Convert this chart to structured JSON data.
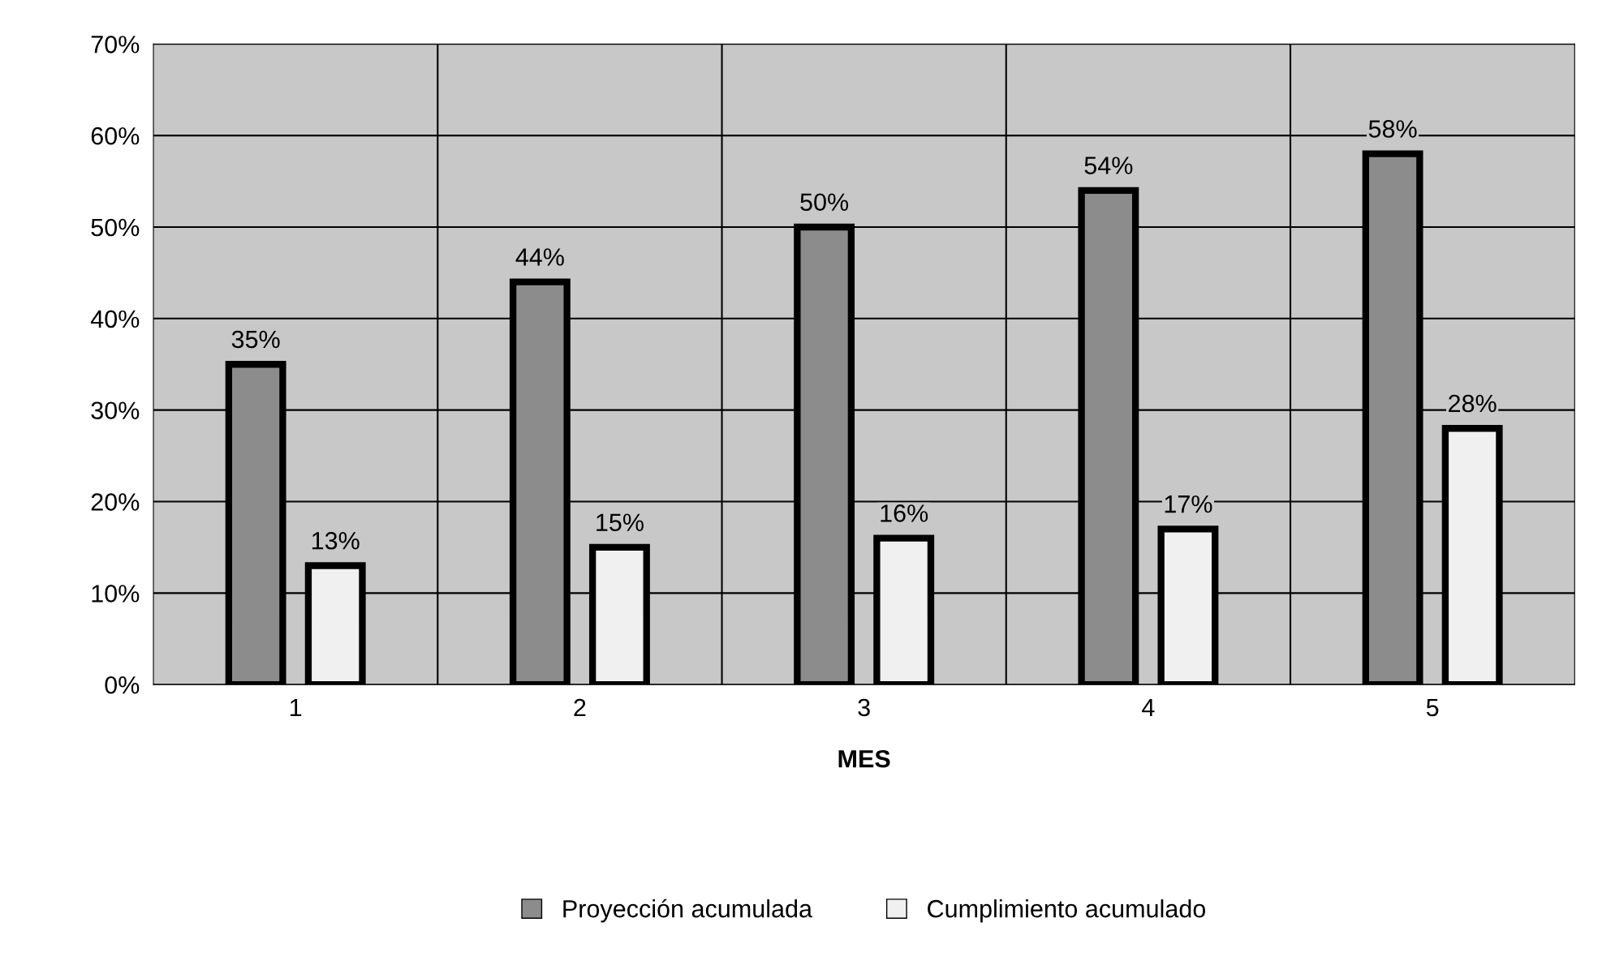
{
  "chart_data": {
    "type": "bar",
    "xlabel": "MES",
    "categories": [
      "1",
      "2",
      "3",
      "4",
      "5"
    ],
    "series": [
      {
        "name": "Proyección acumulada",
        "color": "#8c8c8c",
        "values": [
          35,
          44,
          50,
          54,
          58
        ],
        "value_labels": [
          "35%",
          "44%",
          "50%",
          "54%",
          "58%"
        ]
      },
      {
        "name": "Cumplimiento acumulado",
        "color": "#f0f0f0",
        "values": [
          13,
          15,
          16,
          17,
          28
        ],
        "value_labels": [
          "13%",
          "15%",
          "16%",
          "17%",
          "28%"
        ]
      }
    ],
    "ylim": [
      0,
      70
    ],
    "yticks": [
      {
        "value": 0,
        "label": "0%"
      },
      {
        "value": 10,
        "label": "10%"
      },
      {
        "value": 20,
        "label": "20%"
      },
      {
        "value": 30,
        "label": "30%"
      },
      {
        "value": 40,
        "label": "40%"
      },
      {
        "value": 50,
        "label": "50%"
      },
      {
        "value": 60,
        "label": "60%"
      },
      {
        "value": 70,
        "label": "70%"
      }
    ],
    "grid": true,
    "legend": "bottom"
  }
}
